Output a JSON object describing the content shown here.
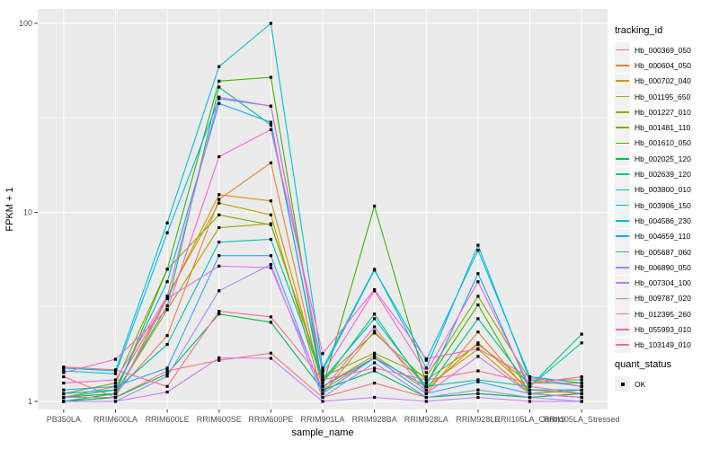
{
  "chart_data": {
    "type": "line",
    "title": "",
    "xlabel": "sample_name",
    "ylabel": "FPKM + 1",
    "y_scale": "log10",
    "ylim": [
      0.9,
      114
    ],
    "grid": "on",
    "legend_position": "right",
    "y_ticks": [
      {
        "label": "1",
        "value": 1
      },
      {
        "label": "10",
        "value": 10
      },
      {
        "label": "100",
        "value": 100
      }
    ],
    "y_minor_values": [
      3.162,
      31.62
    ],
    "categories": [
      "PB350LA",
      "RRIM600LA",
      "RRIM600LE",
      "RRIM600SE",
      "RRIM600PE",
      "RRIM901LA",
      "RRIM928BA",
      "RRIM928LA",
      "RRIM928LE",
      "RRII105LA_Control",
      "RRII105LA_Stressed"
    ],
    "legend_title": "tracking_id",
    "series": [
      {
        "name": "Hb_000369_050",
        "color": "#F8766D",
        "values": [
          1.35,
          1.05,
          1.45,
          1.65,
          1.8,
          1.05,
          1.25,
          1.05,
          1.1,
          1.05,
          1.1
        ]
      },
      {
        "name": "Hb_000604_050",
        "color": "#EA8331",
        "values": [
          1.0,
          1.1,
          2.23,
          11.7,
          18.3,
          1.15,
          1.7,
          1.1,
          2.33,
          1.1,
          1.05
        ]
      },
      {
        "name": "Hb_000702_040",
        "color": "#D89000",
        "values": [
          1.05,
          1.2,
          3.5,
          12.4,
          11.5,
          1.2,
          1.75,
          1.15,
          2.04,
          1.15,
          1.1
        ]
      },
      {
        "name": "Hb_001195_650",
        "color": "#C09B00",
        "values": [
          1.0,
          1.05,
          3.6,
          11.2,
          9.7,
          1.1,
          2.35,
          1.2,
          1.89,
          1.1,
          1.05
        ]
      },
      {
        "name": "Hb_001227_010",
        "color": "#A3A500",
        "values": [
          1.05,
          1.1,
          3.06,
          8.3,
          8.7,
          1.3,
          2.3,
          1.3,
          2.0,
          1.25,
          1.25
        ]
      },
      {
        "name": "Hb_001481_110",
        "color": "#7CAE00",
        "values": [
          1.1,
          1.25,
          5.0,
          9.7,
          8.6,
          1.35,
          1.8,
          1.35,
          3.6,
          1.3,
          1.3
        ]
      },
      {
        "name": "Hb_001610_050",
        "color": "#39B600",
        "values": [
          1.05,
          1.1,
          5.0,
          49.5,
          51.8,
          1.2,
          10.8,
          1.25,
          3.24,
          1.1,
          1.15
        ]
      },
      {
        "name": "Hb_002025_120",
        "color": "#00BB4E",
        "values": [
          1.0,
          1.05,
          1.4,
          2.9,
          2.62,
          1.15,
          1.45,
          1.05,
          1.1,
          1.05,
          1.1
        ]
      },
      {
        "name": "Hb_002639_120",
        "color": "#00C087",
        "values": [
          1.0,
          1.1,
          3.2,
          46.0,
          29.0,
          1.25,
          2.9,
          1.15,
          2.74,
          1.2,
          2.27
        ]
      },
      {
        "name": "Hb_003800_010",
        "color": "#00C0B2",
        "values": [
          1.05,
          1.15,
          2.0,
          6.96,
          7.2,
          1.3,
          2.74,
          1.2,
          1.3,
          1.2,
          2.04
        ]
      },
      {
        "name": "Hb_003906_150",
        "color": "#00BFD4",
        "values": [
          1.5,
          1.45,
          8.8,
          59.0,
          100.0,
          1.5,
          5.0,
          1.5,
          6.7,
          1.3,
          1.2
        ]
      },
      {
        "name": "Hb_004586_230",
        "color": "#00B9E3",
        "values": [
          1.45,
          1.4,
          7.8,
          40.0,
          36.5,
          1.45,
          4.95,
          1.65,
          6.3,
          1.35,
          1.25
        ]
      },
      {
        "name": "Hb_004659_110",
        "color": "#00ACFC",
        "values": [
          1.1,
          1.15,
          4.3,
          37.7,
          30.0,
          1.2,
          1.7,
          1.2,
          4.74,
          1.15,
          1.15
        ]
      },
      {
        "name": "Hb_005687_060",
        "color": "#35A2FF",
        "values": [
          1.15,
          1.2,
          1.5,
          5.9,
          5.9,
          1.1,
          1.7,
          1.1,
          1.27,
          1.1,
          1.05
        ]
      },
      {
        "name": "Hb_006890_050",
        "color": "#9590FF",
        "values": [
          1.0,
          1.0,
          1.36,
          3.85,
          5.3,
          1.05,
          1.6,
          1.05,
          1.15,
          1.05,
          1.0
        ]
      },
      {
        "name": "Hb_007304_100",
        "color": "#C77CFF",
        "values": [
          1.0,
          1.0,
          1.12,
          1.7,
          1.69,
          1.0,
          1.05,
          1.0,
          1.05,
          1.0,
          1.0
        ]
      },
      {
        "name": "Hb_009787_020",
        "color": "#E76BF3",
        "values": [
          1.05,
          1.05,
          3.5,
          5.2,
          5.1,
          1.15,
          2.48,
          1.1,
          1.73,
          1.1,
          1.05
        ]
      },
      {
        "name": "Hb_012395_260",
        "color": "#FA62DB",
        "values": [
          1.25,
          1.3,
          3.6,
          40.7,
          36.5,
          1.4,
          3.85,
          1.42,
          4.3,
          1.2,
          1.1
        ]
      },
      {
        "name": "Hb_055993_010",
        "color": "#FF61C9",
        "values": [
          1.42,
          1.67,
          3.06,
          19.7,
          27.4,
          1.79,
          3.9,
          1.68,
          1.9,
          1.34,
          1.2
        ]
      },
      {
        "name": "Hb_103149_010",
        "color": "#FF6A98",
        "values": [
          1.52,
          1.47,
          1.2,
          3.0,
          2.8,
          1.3,
          1.5,
          1.3,
          1.45,
          1.25,
          1.35
        ]
      }
    ],
    "quant_legend": {
      "title": "quant_status",
      "items": [
        {
          "label": "OK",
          "marker": "black-square"
        }
      ]
    },
    "colors": {
      "panel_bg": "#EBEBEB",
      "grid": "#FFFFFF",
      "tick_text": "#4D4D4D",
      "axis_title": "#000000",
      "point": "#000000",
      "legend_key_bg": "#F2F2F2"
    }
  }
}
